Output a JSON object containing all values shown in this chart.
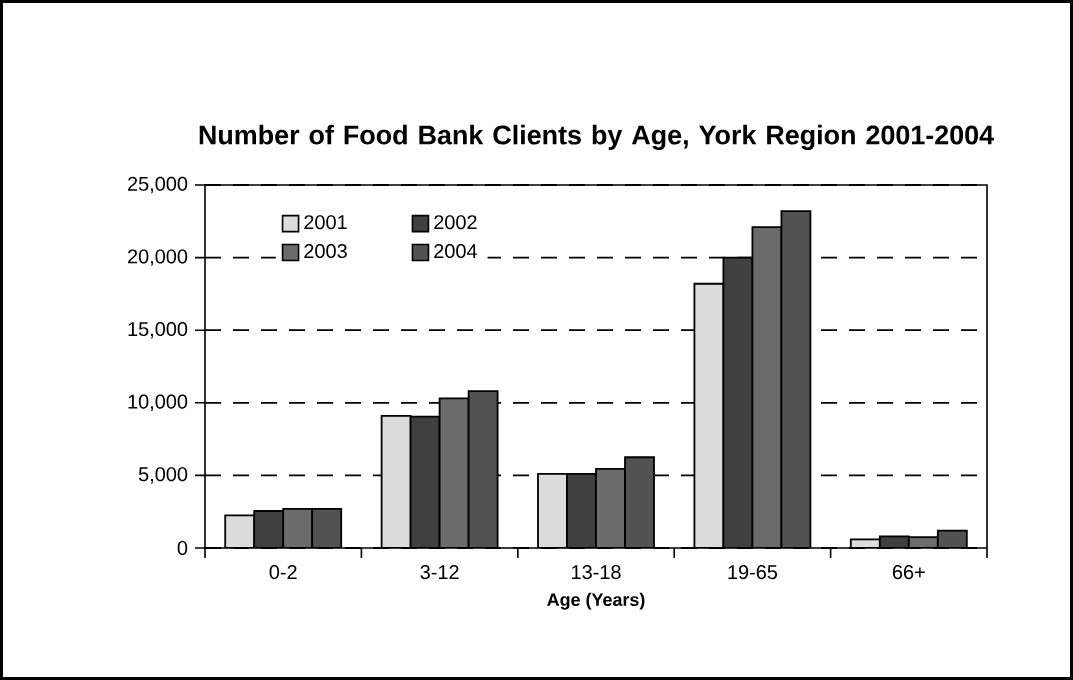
{
  "chart_data": {
    "type": "bar",
    "title": "Number of Food Bank Clients by Age, York Region 2001-2004",
    "xlabel": "Age (Years)",
    "categories": [
      "0-2",
      "3-12",
      "13-18",
      "19-65",
      "66+"
    ],
    "series": [
      {
        "name": "2001",
        "color": "#dcdcdc",
        "values": [
          2250,
          9100,
          5100,
          18200,
          600
        ]
      },
      {
        "name": "2002",
        "color": "#404040",
        "values": [
          2550,
          9050,
          5100,
          20000,
          800
        ]
      },
      {
        "name": "2003",
        "color": "#6b6b6b",
        "values": [
          2700,
          10300,
          5450,
          22100,
          750
        ]
      },
      {
        "name": "2004",
        "color": "#525252",
        "values": [
          2700,
          10800,
          6250,
          23200,
          1200
        ]
      }
    ],
    "ylim": [
      0,
      25000
    ],
    "yticks": [
      {
        "value": 0,
        "label": "0"
      },
      {
        "value": 5000,
        "label": "5,000"
      },
      {
        "value": 10000,
        "label": "10,000"
      },
      {
        "value": 15000,
        "label": "15,000"
      },
      {
        "value": 20000,
        "label": "20,000"
      },
      {
        "value": 25000,
        "label": "25,000"
      }
    ],
    "grid": "y",
    "legend": "top left"
  }
}
